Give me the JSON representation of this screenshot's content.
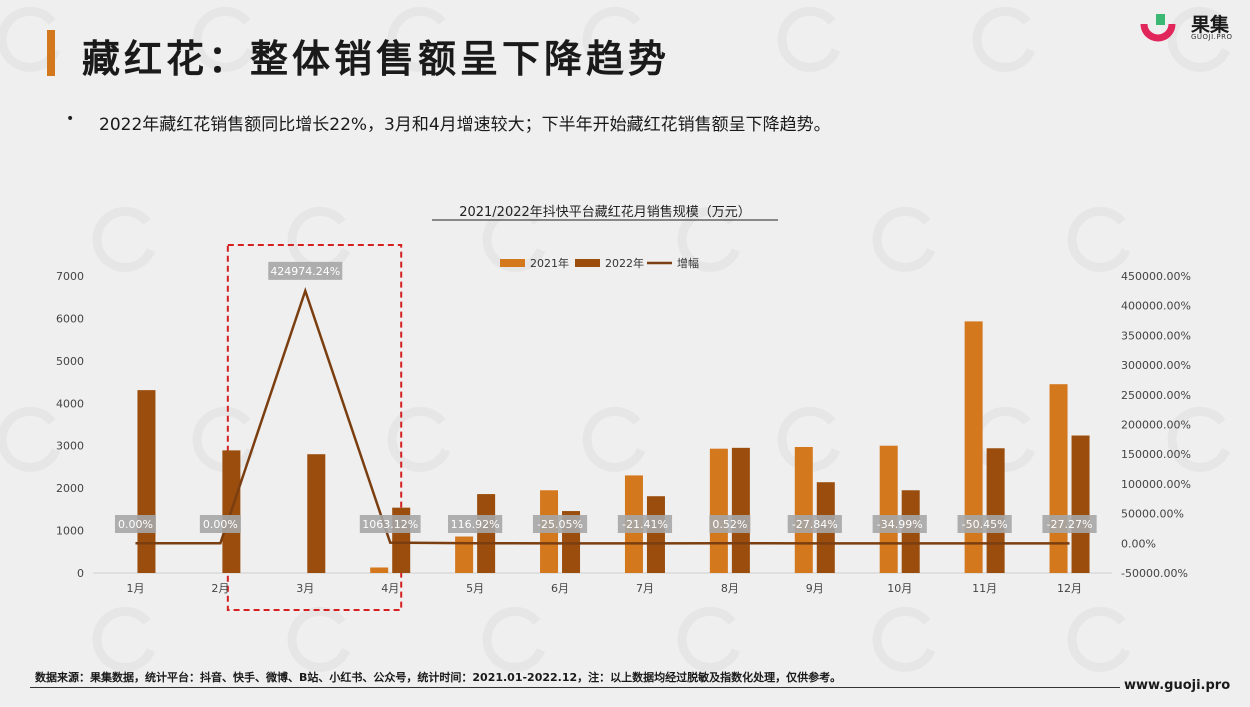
{
  "header": {
    "title": "藏红花：整体销售额呈下降趋势",
    "logo_name": "果集",
    "logo_sub": "GUOJI.PRO"
  },
  "summary": {
    "bullet": "•",
    "text": "2022年藏红花销售额同比增长22%，3月和4月增速较大；下半年开始藏红花销售额呈下降趋势。"
  },
  "footer": {
    "note": "数据来源：果集数据，统计平台：抖音、快手、微博、B站、小红书、公众号，统计时间：2021.01-2022.12，注：以上数据均经过脱敏及指数化处理，仅供参考。",
    "url": "www.guoji.pro"
  },
  "colors": {
    "series_2021": "#d4781e",
    "series_2022": "#9a4d0c",
    "growth_line": "#7a3e10",
    "accent": "#d4781e",
    "highlight_box": "#d42020",
    "label_bg": "#a6a6a6"
  },
  "chart_data": {
    "type": "bar",
    "title": "2021/2022年抖快平台藏红花月销售规模（万元）",
    "categories": [
      "1月",
      "2月",
      "3月",
      "4月",
      "5月",
      "6月",
      "7月",
      "8月",
      "9月",
      "10月",
      "11月",
      "12月"
    ],
    "series": [
      {
        "name": "2021年",
        "type": "bar",
        "values": [
          0,
          0,
          0,
          130,
          860,
          1950,
          2300,
          2930,
          2970,
          3000,
          5930,
          4450
        ]
      },
      {
        "name": "2022年",
        "type": "bar",
        "values": [
          4310,
          2890,
          2800,
          1540,
          1860,
          1460,
          1810,
          2950,
          2140,
          1950,
          2940,
          3240
        ]
      },
      {
        "name": "增幅",
        "type": "line",
        "axis": "right",
        "values": [
          0.0,
          0.0,
          424974.24,
          1063.12,
          116.92,
          -25.05,
          -21.41,
          0.52,
          -27.84,
          -34.99,
          -50.45,
          -27.27
        ]
      }
    ],
    "data_labels": [
      "0.00%",
      "0.00%",
      "424974.24%",
      "1063.12%",
      "116.92%",
      "-25.05%",
      "-21.41%",
      "0.52%",
      "-27.84%",
      "-34.99%",
      "-50.45%",
      "-27.27%"
    ],
    "y_left": {
      "ylim": [
        0,
        7000
      ],
      "ticks": [
        "0",
        "1000",
        "2000",
        "3000",
        "4000",
        "5000",
        "6000",
        "7000"
      ]
    },
    "y_right": {
      "ylim": [
        -50000,
        450000
      ],
      "ticks": [
        "-50000.00%",
        "0.00%",
        "50000.00%",
        "100000.00%",
        "150000.00%",
        "200000.00%",
        "250000.00%",
        "300000.00%",
        "350000.00%",
        "400000.00%",
        "450000.00%"
      ]
    },
    "legend_position": "top",
    "grid": true,
    "highlight": "3月-4月"
  }
}
